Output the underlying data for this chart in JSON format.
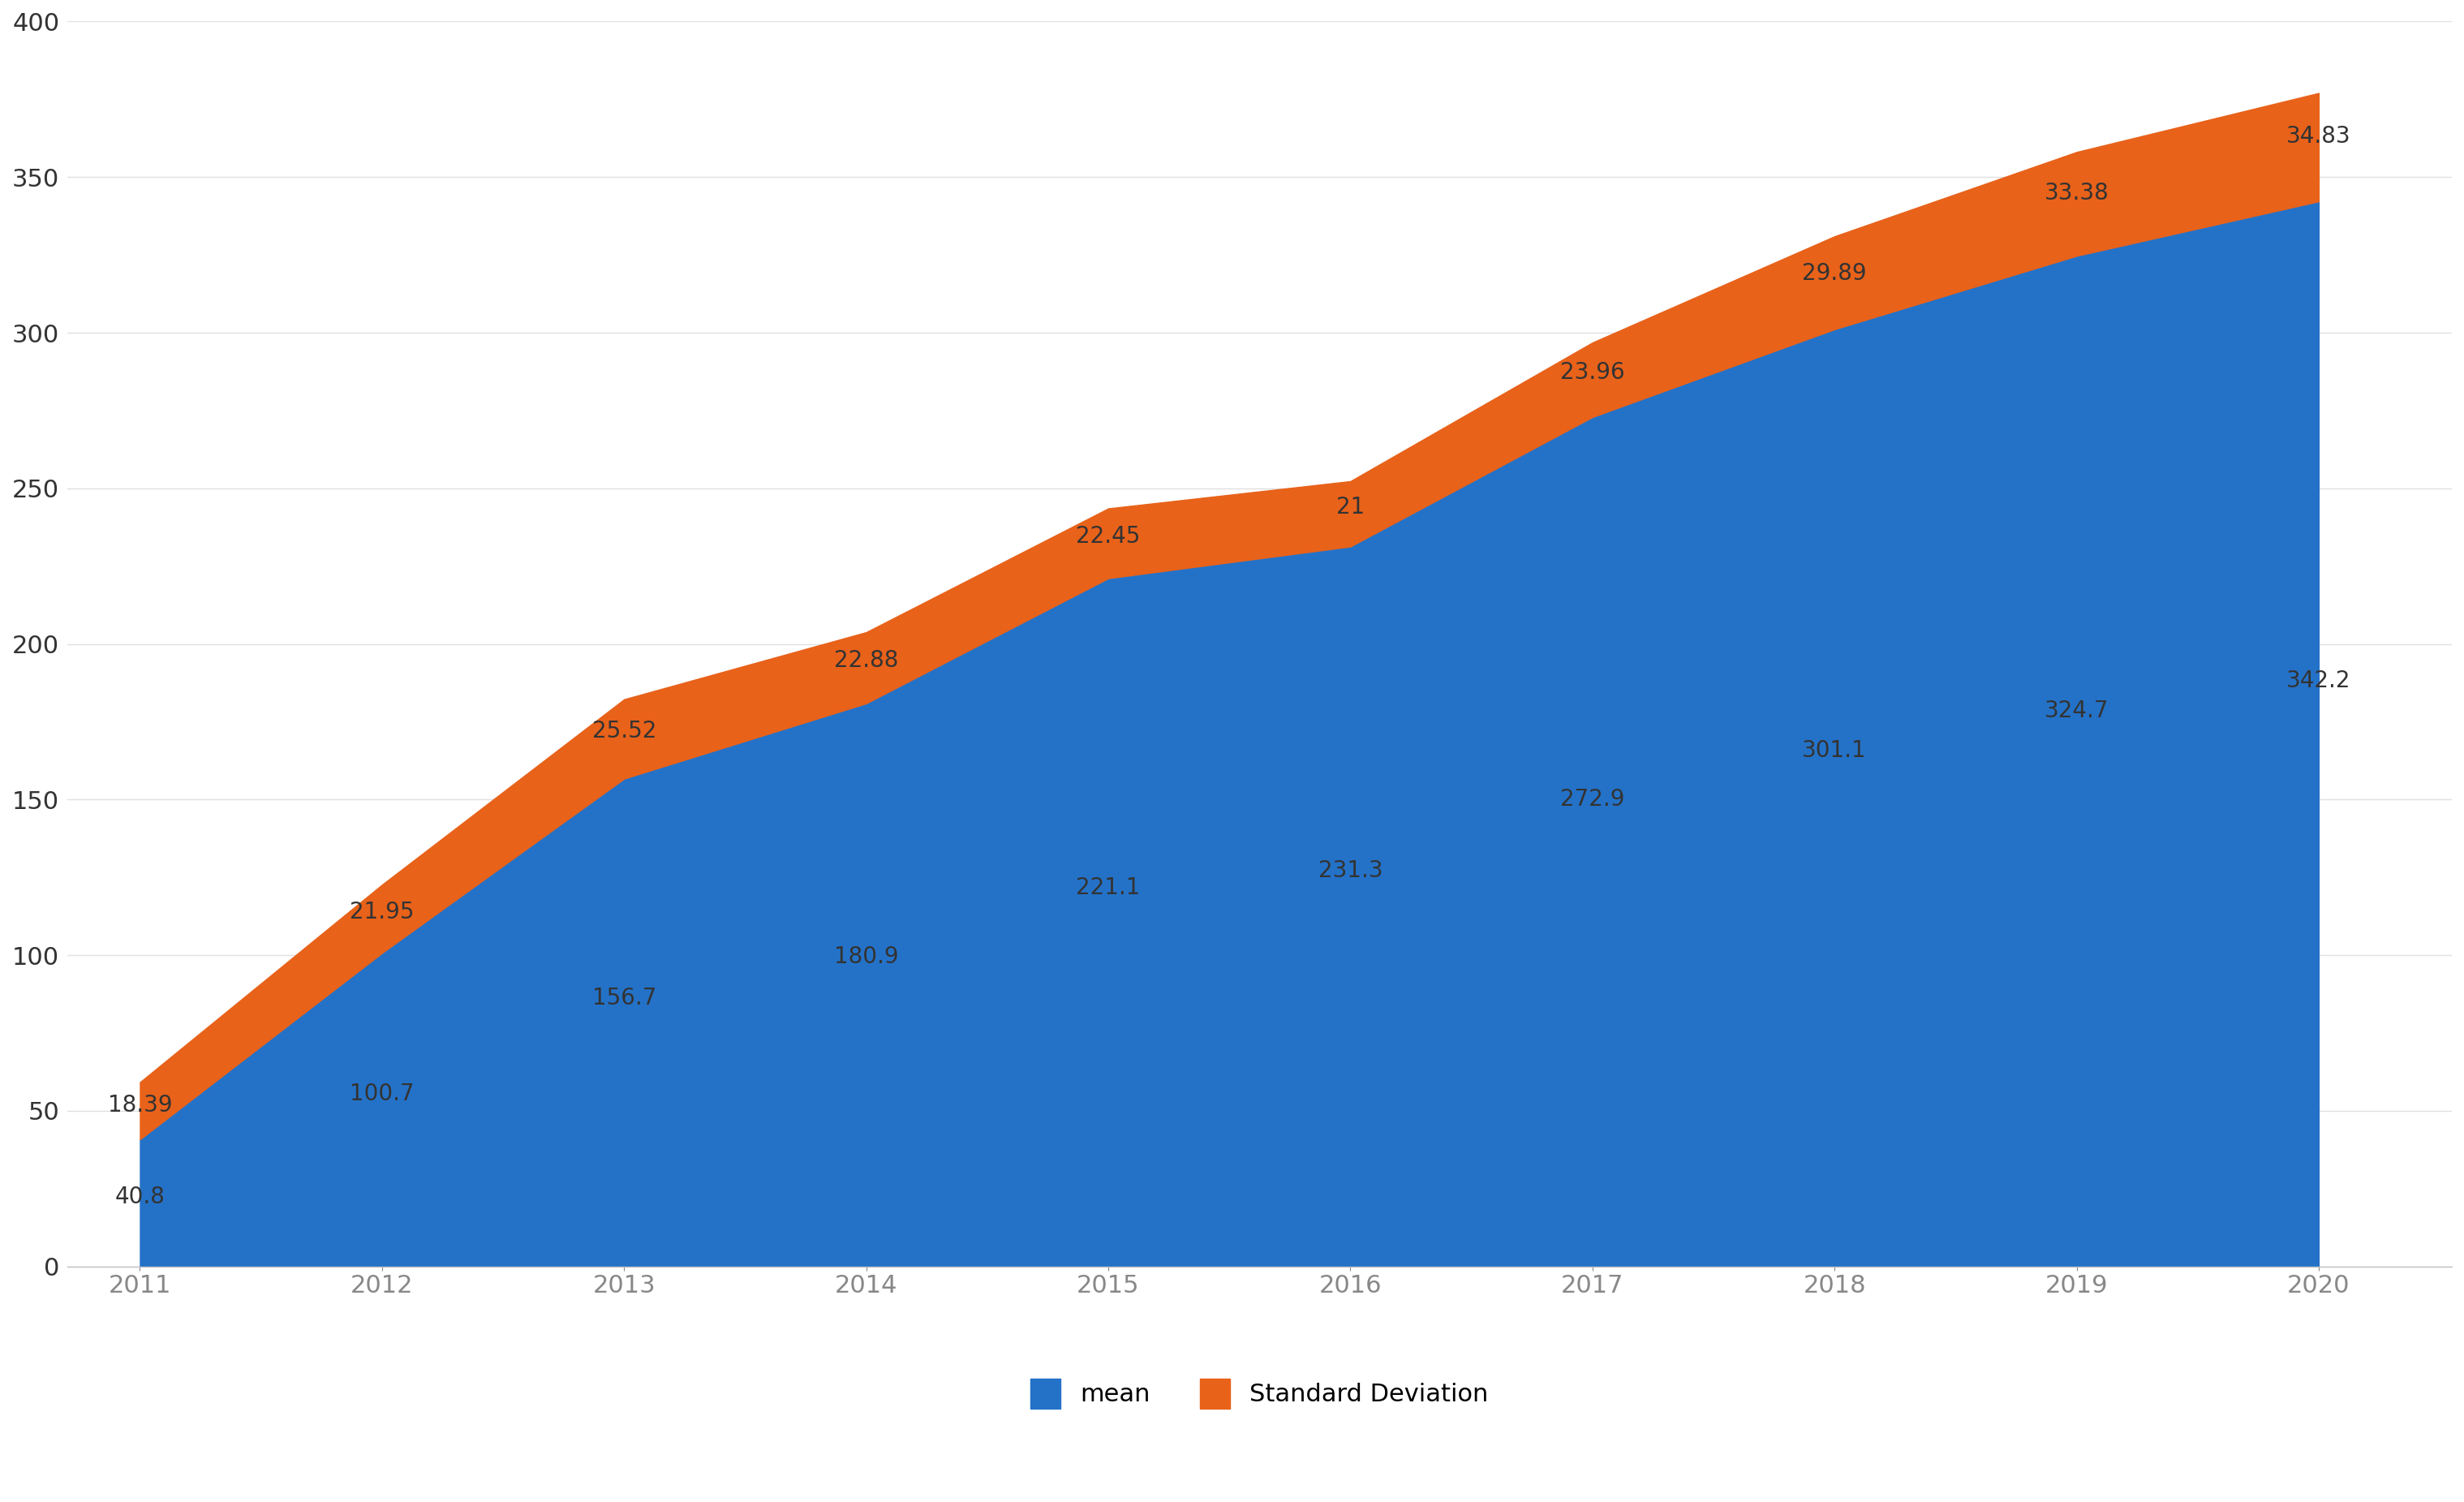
{
  "years": [
    2011,
    2012,
    2013,
    2014,
    2015,
    2016,
    2017,
    2018,
    2019,
    2020
  ],
  "mean": [
    40.8,
    100.7,
    156.7,
    180.9,
    221.1,
    231.3,
    272.9,
    301.1,
    324.7,
    342.2
  ],
  "std_dev": [
    18.39,
    21.95,
    25.52,
    22.88,
    22.45,
    21.0,
    23.96,
    29.89,
    33.38,
    34.83
  ],
  "mean_labels": [
    "40.8",
    "100.7",
    "156.7",
    "180.9",
    "221.1",
    "231.3",
    "272.9",
    "301.1",
    "324.7",
    "342.2"
  ],
  "std_labels": [
    "18.39",
    "21.95",
    "25.52",
    "22.88",
    "22.45",
    "21",
    "23.96",
    "29.89",
    "33.38",
    "34.83"
  ],
  "mean_color": "#2472c8",
  "std_color": "#e8621a",
  "ylim": [
    0,
    400
  ],
  "yticks": [
    0,
    50,
    100,
    150,
    200,
    250,
    300,
    350,
    400
  ],
  "legend_labels": [
    "mean",
    "Standard Deviation"
  ],
  "background_color": "#ffffff",
  "label_color": "#333333",
  "label_fontsize": 20,
  "tick_fontsize": 22,
  "legend_fontsize": 22
}
